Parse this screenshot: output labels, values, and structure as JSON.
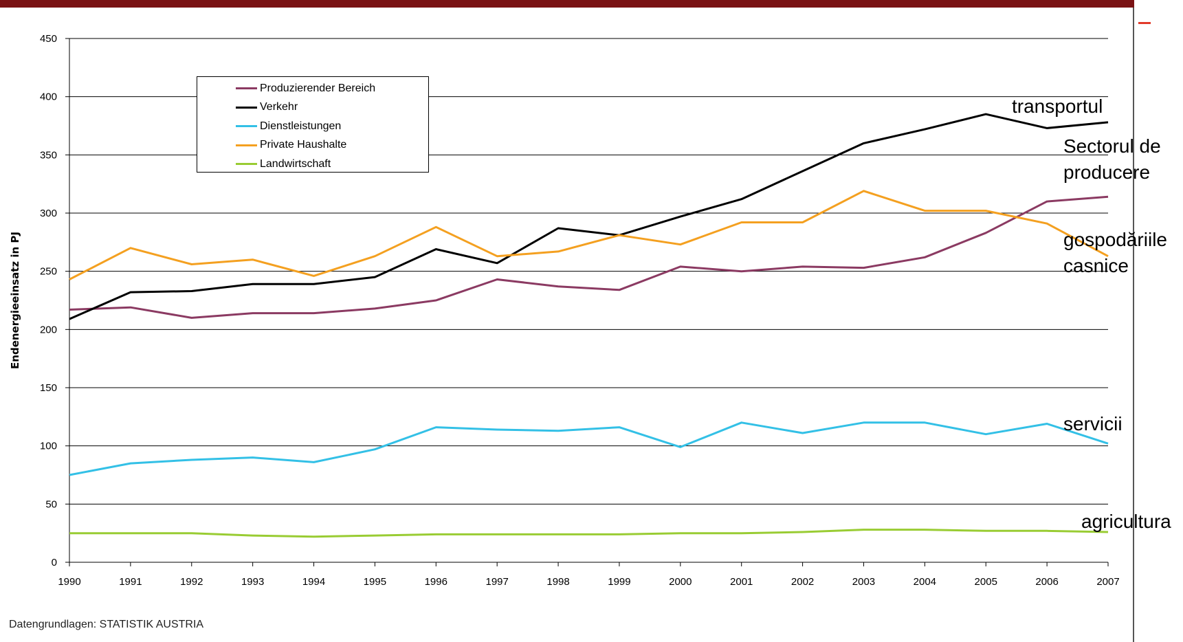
{
  "colors": {
    "title_bar": "#7a1214",
    "accent_dash": "#e23a2a"
  },
  "chart_data": {
    "type": "line",
    "title": "",
    "xlabel": "",
    "ylabel": "Endenergieeinsatz in PJ",
    "x": [
      "1990",
      "1991",
      "1992",
      "1993",
      "1994",
      "1995",
      "1996",
      "1997",
      "1998",
      "1999",
      "2000",
      "2001",
      "2002",
      "2003",
      "2004",
      "2005",
      "2006",
      "2007"
    ],
    "ylim": [
      0,
      450
    ],
    "yticks": [
      0,
      50,
      100,
      150,
      200,
      250,
      300,
      350,
      400,
      450
    ],
    "grid": true,
    "legend_position": "top-left",
    "series": [
      {
        "name": "Produzierender Bereich",
        "color": "#8b3a62",
        "values": [
          217,
          219,
          210,
          214,
          214,
          218,
          225,
          243,
          237,
          234,
          254,
          250,
          254,
          253,
          262,
          283,
          310,
          314
        ]
      },
      {
        "name": "Verkehr",
        "color": "#000000",
        "values": [
          209,
          232,
          233,
          239,
          239,
          245,
          269,
          257,
          287,
          281,
          297,
          312,
          336,
          360,
          372,
          385,
          373,
          378
        ]
      },
      {
        "name": "Dienstleistungen",
        "color": "#33c0e6",
        "values": [
          75,
          85,
          88,
          90,
          86,
          97,
          116,
          114,
          113,
          116,
          99,
          120,
          111,
          120,
          120,
          110,
          119,
          102
        ]
      },
      {
        "name": "Private Haushalte",
        "color": "#f4a020",
        "values": [
          243,
          270,
          256,
          260,
          246,
          263,
          288,
          263,
          267,
          281,
          273,
          292,
          292,
          319,
          302,
          302,
          291,
          263
        ]
      },
      {
        "name": "Landwirtschaft",
        "color": "#99cc33",
        "values": [
          25,
          25,
          25,
          23,
          22,
          23,
          24,
          24,
          24,
          24,
          25,
          25,
          26,
          28,
          28,
          27,
          27,
          26
        ]
      }
    ],
    "annotations": [
      {
        "text": "transportul"
      },
      {
        "text": "Sectorul de"
      },
      {
        "text": "producere"
      },
      {
        "text": "gospodăriile"
      },
      {
        "text": "casnice"
      },
      {
        "text": "servicii"
      },
      {
        "text": "agricultura"
      }
    ],
    "source": "Datengrundlagen: STATISTIK AUSTRIA"
  }
}
